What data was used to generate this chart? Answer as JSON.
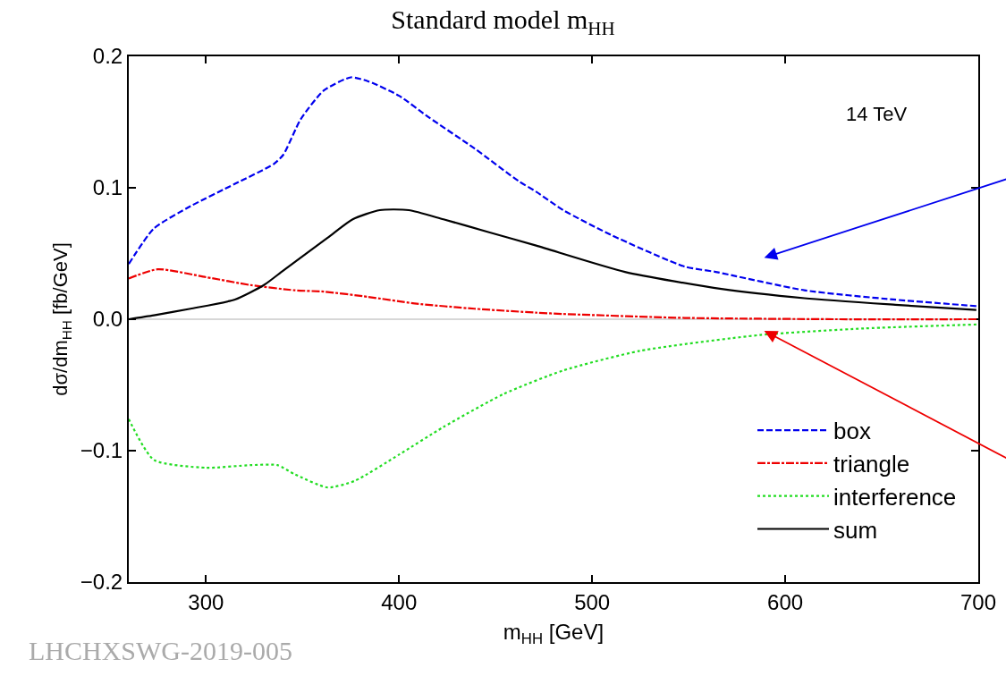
{
  "chart_data": {
    "type": "line",
    "title": "Standard model m$_{HH}$",
    "xlabel": "m$_{HH}$ [GeV]",
    "ylabel": "dσ/dm$_{HH}$ [fb/GeV]",
    "xlim": [
      260,
      700
    ],
    "xticks": [
      300,
      400,
      500,
      600,
      700
    ],
    "ylim": [
      -0.2,
      0.2
    ],
    "yticks": [
      {
        "value": -0.2,
        "label": "−0.2"
      },
      {
        "value": -0.1,
        "label": "−0.1"
      },
      {
        "value": 0,
        "label": "0.0"
      },
      {
        "value": 0.1,
        "label": "0.1"
      },
      {
        "value": 0.2,
        "label": "0.2"
      }
    ],
    "grid": false,
    "legend": "bottom right",
    "marker": "none",
    "ref_lines": [
      {
        "axis": "y",
        "value": 0,
        "color": "#b0b0b0",
        "line_style": "solid"
      }
    ],
    "annotations": [
      "14 TeV",
      "LHCHXSWG-2019-005"
    ],
    "series": [
      {
        "name": "box",
        "color": "#0000ee",
        "line_style": "dashed",
        "x": [
          260,
          273,
          292,
          315,
          335,
          340,
          349,
          361,
          375,
          384,
          400,
          415,
          439,
          462,
          471,
          485,
          510,
          548,
          564,
          610,
          656,
          699
        ],
        "values": [
          0.042,
          0.069,
          0.086,
          0.103,
          0.118,
          0.125,
          0.152,
          0.174,
          0.184,
          0.181,
          0.17,
          0.154,
          0.13,
          0.105,
          0.097,
          0.083,
          0.064,
          0.04,
          0.036,
          0.022,
          0.015,
          0.01
        ]
      },
      {
        "name": "triangle",
        "color": "#ee0000",
        "line_style": "dashdot",
        "x": [
          260,
          275,
          300,
          323,
          346,
          361,
          384,
          408,
          439,
          471,
          485,
          548,
          626,
          699
        ],
        "values": [
          0.031,
          0.038,
          0.032,
          0.026,
          0.022,
          0.021,
          0.017,
          0.012,
          0.008,
          0.005,
          0.004,
          0.001,
          0.0,
          0.0
        ]
      },
      {
        "name": "interference",
        "color": "#22dd22",
        "line_style": "dotted",
        "x": [
          260,
          273,
          300,
          323,
          337,
          346,
          363,
          377,
          400,
          423,
          454,
          485,
          525,
          587,
          641,
          699
        ],
        "values": [
          -0.076,
          -0.107,
          -0.113,
          -0.111,
          -0.111,
          -0.118,
          -0.128,
          -0.123,
          -0.103,
          -0.082,
          -0.057,
          -0.039,
          -0.024,
          -0.012,
          -0.007,
          -0.004
        ]
      },
      {
        "name": "sum",
        "color": "#000000",
        "line_style": "solid",
        "x": [
          260,
          273,
          292,
          315,
          330,
          340,
          363,
          376,
          390,
          405,
          423,
          447,
          471,
          517,
          567,
          610,
          657,
          699
        ],
        "values": [
          0.0,
          0.003,
          0.008,
          0.015,
          0.026,
          0.037,
          0.062,
          0.076,
          0.083,
          0.083,
          0.076,
          0.066,
          0.056,
          0.036,
          0.023,
          0.016,
          0.011,
          0.007
        ]
      }
    ]
  }
}
